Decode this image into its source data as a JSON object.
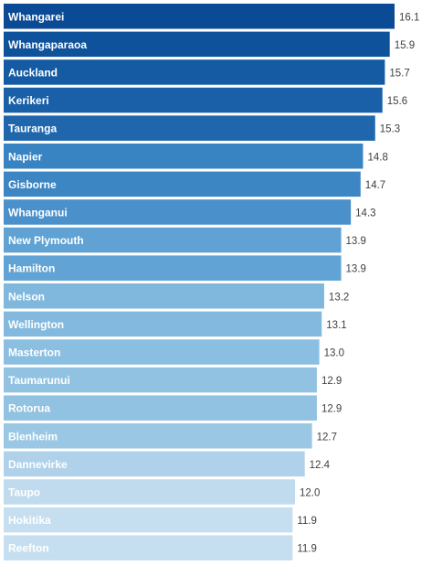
{
  "chart_data": {
    "type": "bar",
    "orientation": "horizontal",
    "categories": [
      "Whangarei",
      "Whangaparaoa",
      "Auckland",
      "Kerikeri",
      "Tauranga",
      "Napier",
      "Gisborne",
      "Whanganui",
      "New Plymouth",
      "Hamilton",
      "Nelson",
      "Wellington",
      "Masterton",
      "Taumarunui",
      "Rotorua",
      "Blenheim",
      "Dannevirke",
      "Taupo",
      "Hokitika",
      "Reefton"
    ],
    "values": [
      16.1,
      15.9,
      15.7,
      15.6,
      15.3,
      14.8,
      14.7,
      14.3,
      13.9,
      13.9,
      13.2,
      13.1,
      13.0,
      12.9,
      12.9,
      12.7,
      12.4,
      12.0,
      11.9,
      11.9
    ],
    "value_labels": [
      "16.1",
      "15.9",
      "15.7",
      "15.6",
      "15.3",
      "14.8",
      "14.7",
      "14.3",
      "13.9",
      "13.9",
      "13.2",
      "13.1",
      "13.0",
      "12.9",
      "12.9",
      "12.7",
      "12.4",
      "12.0",
      "11.9",
      "11.9"
    ],
    "bar_colors": [
      "#0b4a94",
      "#0f529c",
      "#155ba3",
      "#1a60a8",
      "#1f66ad",
      "#3883c2",
      "#3c86c4",
      "#4a90ca",
      "#5fa2d3",
      "#60a3d4",
      "#7fb7dd",
      "#83b9de",
      "#8bbfe1",
      "#92c2e2",
      "#92c2e2",
      "#9ac7e4",
      "#b0d1ea",
      "#c1dbee",
      "#c6dff0",
      "#c6dff0"
    ],
    "label_color": "#ffffff",
    "value_label_color": "#404040",
    "title": "",
    "xlabel": "",
    "ylabel": "",
    "xlim": [
      0,
      16.4
    ],
    "grid": false,
    "legend": "none"
  }
}
